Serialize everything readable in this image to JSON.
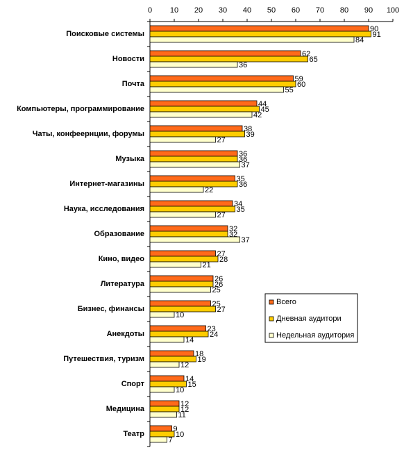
{
  "chart_data": {
    "type": "bar",
    "orientation": "horizontal",
    "categories": [
      "Поисковые системы",
      "Новости",
      "Почта",
      "Компьютеры, программирование",
      "Чаты, конфеернции, форумы",
      "Музыка",
      "Интернет-магазины",
      "Наука, исследования",
      "Образование",
      "Кино, видео",
      "Литература",
      "Бизнес, финансы",
      "Анекдоты",
      "Путешествия, туризм",
      "Спорт",
      "Медицина",
      "Театр"
    ],
    "series": [
      {
        "name": "Всего",
        "color": "#ff6a1a",
        "values": [
          90,
          62,
          59,
          44,
          38,
          36,
          35,
          34,
          32,
          27,
          26,
          25,
          23,
          18,
          14,
          12,
          9
        ]
      },
      {
        "name": "Дневная аудитори",
        "color": "#ffcc00",
        "values": [
          91,
          65,
          60,
          45,
          39,
          36,
          36,
          35,
          32,
          28,
          26,
          27,
          24,
          19,
          15,
          12,
          10
        ]
      },
      {
        "name": "Недельная аудитория",
        "color": "#ffffcc",
        "values": [
          84,
          36,
          55,
          42,
          27,
          37,
          22,
          27,
          37,
          21,
          25,
          10,
          14,
          12,
          10,
          11,
          7
        ]
      }
    ],
    "xlim": [
      0,
      100
    ],
    "xticks": [
      0,
      10,
      20,
      30,
      40,
      50,
      60,
      70,
      80,
      90,
      100
    ],
    "legend": "right",
    "value_labels_shown": true
  }
}
